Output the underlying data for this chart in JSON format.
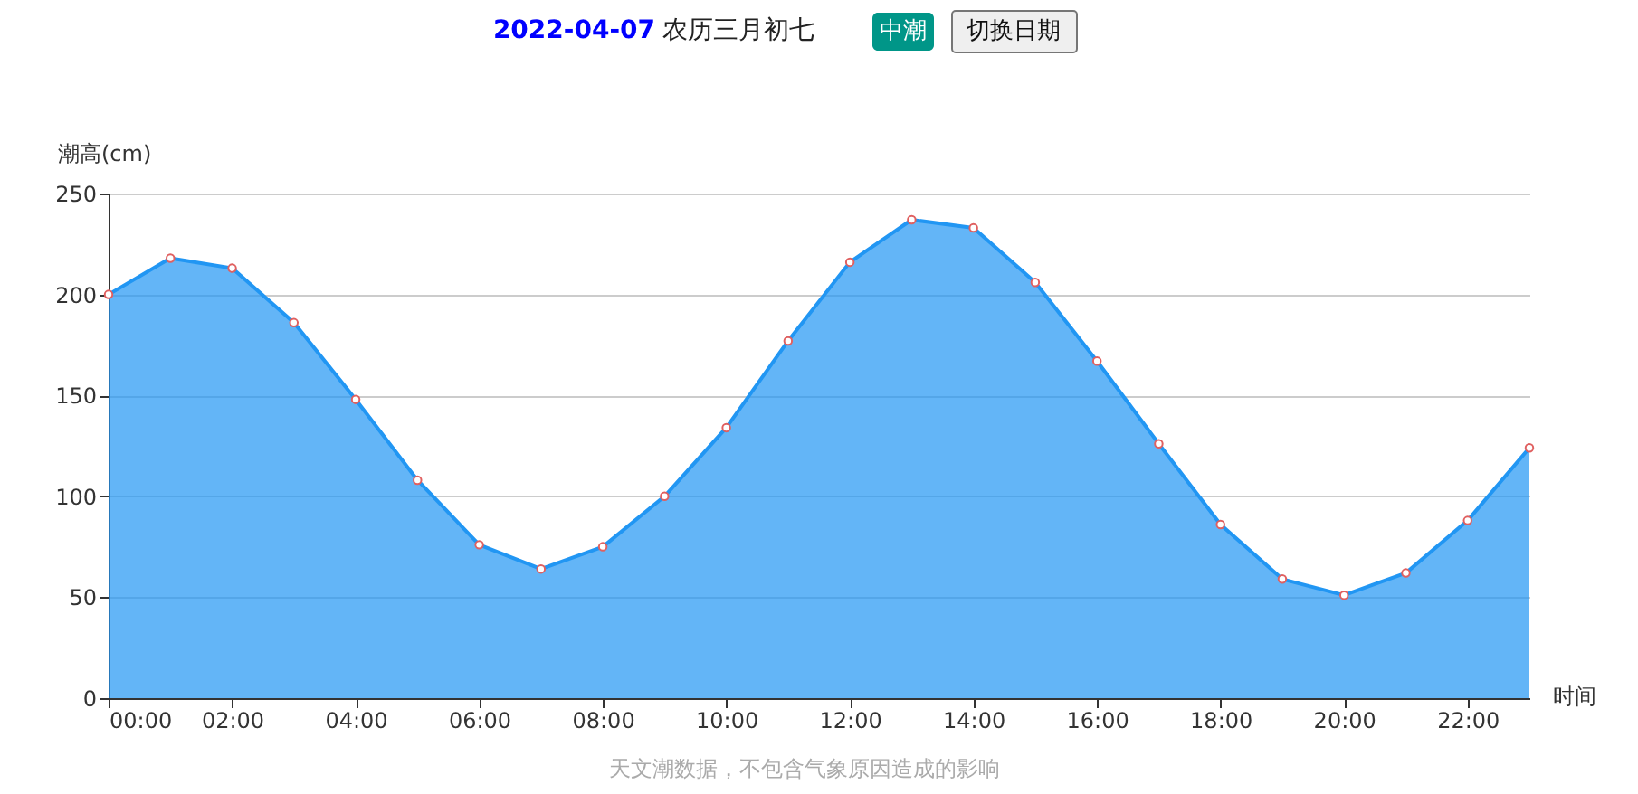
{
  "chart_data": {
    "type": "area",
    "title": "2022-04-07",
    "subtitle": "农历三月初七",
    "annotations": [
      "中潮",
      "切换日期",
      "天文潮数据，不包含气象原因造成的影响"
    ],
    "xlabel": "时间",
    "ylabel": "潮高(cm)",
    "x": [
      0,
      1,
      2,
      3,
      4,
      5,
      6,
      7,
      8,
      9,
      10,
      11,
      12,
      13,
      14,
      15,
      16,
      17,
      18,
      19,
      20,
      21,
      22,
      23
    ],
    "series": [
      {
        "color": "#2196f3",
        "values": [
          200,
          218,
          213,
          186,
          148,
          108,
          76,
          64,
          75,
          100,
          134,
          177,
          216,
          237,
          233,
          206,
          167,
          126,
          86,
          59,
          51,
          62,
          88,
          124
        ]
      }
    ],
    "xlim": [
      0,
      23
    ],
    "xticks": [
      {
        "value": 0,
        "label": "00:00"
      },
      {
        "value": 2,
        "label": "02:00"
      },
      {
        "value": 4,
        "label": "04:00"
      },
      {
        "value": 6,
        "label": "06:00"
      },
      {
        "value": 8,
        "label": "08:00"
      },
      {
        "value": 10,
        "label": "10:00"
      },
      {
        "value": 12,
        "label": "12:00"
      },
      {
        "value": 14,
        "label": "14:00"
      },
      {
        "value": 16,
        "label": "16:00"
      },
      {
        "value": 18,
        "label": "18:00"
      },
      {
        "value": 20,
        "label": "20:00"
      },
      {
        "value": 22,
        "label": "22:00"
      }
    ],
    "ylim": [
      0,
      250
    ],
    "yticks": [
      0,
      50,
      100,
      150,
      200,
      250
    ],
    "grid": "y",
    "marker": "circle",
    "line_style": "solid"
  }
}
